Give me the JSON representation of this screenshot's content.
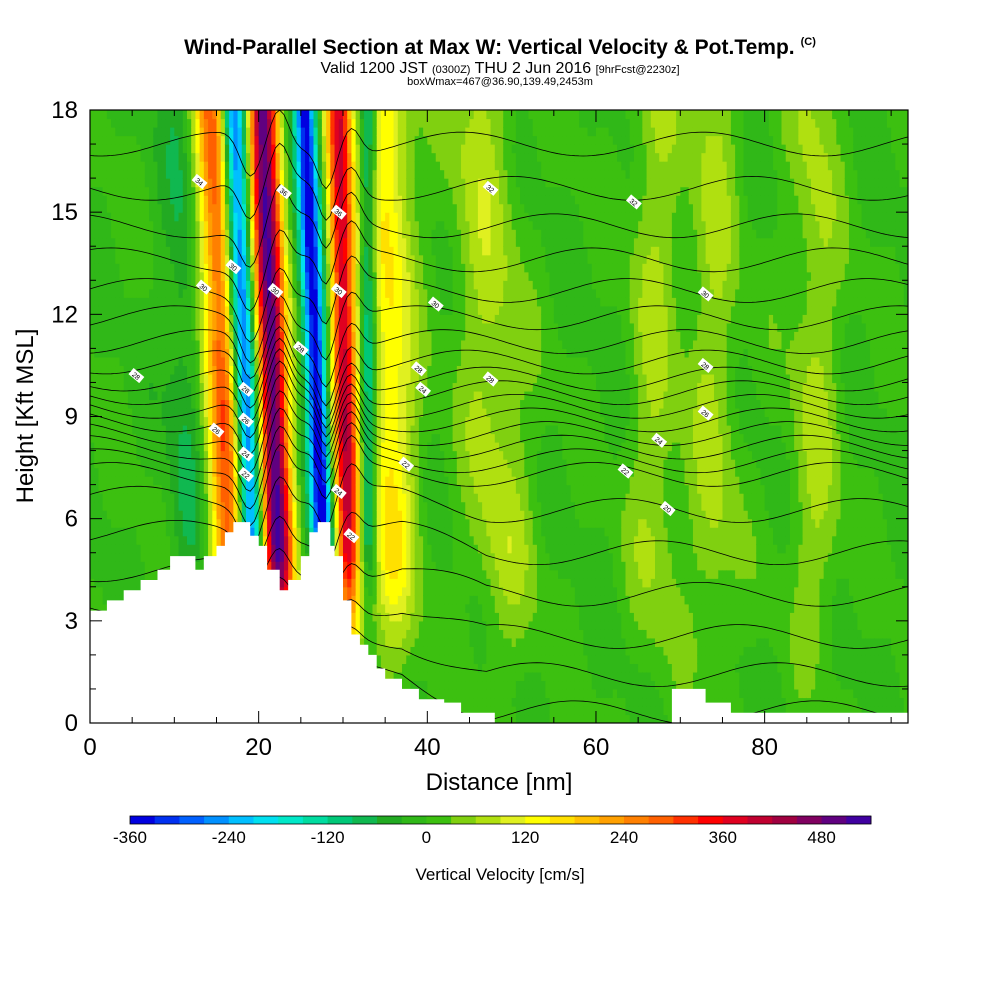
{
  "title": {
    "main": "Wind-Parallel Section at Max W: Vertical Velocity & Pot.Temp.",
    "copyright": "(C)",
    "valid_prefix": "Valid 1200 JST",
    "valid_utc": "(0300Z)",
    "valid_date": "THU 2 Jun 2016",
    "forecast": "[9hrFcst@2230z]",
    "box": "boxWmax=467@36.90,139.49,2453m"
  },
  "chart_data": {
    "type": "heatmap",
    "xlabel": "Distance [nm]",
    "ylabel": "Height [Kft MSL]",
    "xlim": [
      0,
      97
    ],
    "ylim": [
      0,
      18
    ],
    "x_ticks": [
      "0",
      "20",
      "40",
      "60",
      "80"
    ],
    "y_ticks": [
      "0",
      "3",
      "6",
      "9",
      "12",
      "15",
      "18"
    ],
    "colorbar": {
      "label": "Vertical Velocity [cm/s]",
      "tick_labels": [
        "-360",
        "-240",
        "-120",
        "0",
        "120",
        "240",
        "360",
        "480"
      ],
      "tick_values": [
        -360,
        -240,
        -120,
        0,
        120,
        240,
        360,
        480
      ],
      "bins": [
        -360,
        -330,
        -300,
        -270,
        -240,
        -210,
        -180,
        -150,
        -120,
        -90,
        -60,
        -30,
        0,
        30,
        60,
        90,
        120,
        150,
        180,
        210,
        240,
        270,
        300,
        330,
        360,
        390,
        420,
        450,
        480,
        510,
        540
      ],
      "colors": [
        "#0000e0",
        "#0030f0",
        "#0060ff",
        "#0090ff",
        "#00bfff",
        "#00e0f0",
        "#00e8c8",
        "#00dca0",
        "#00c878",
        "#10b850",
        "#22aa22",
        "#30b818",
        "#3cc010",
        "#80d010",
        "#b0e010",
        "#e0f020",
        "#ffff00",
        "#ffe000",
        "#ffc000",
        "#ffa000",
        "#ff8000",
        "#ff6000",
        "#ff3000",
        "#ff0000",
        "#e00020",
        "#c00030",
        "#a00040",
        "#800060",
        "#600080",
        "#4000a0"
      ]
    },
    "background_w": 0,
    "updrafts": [
      {
        "x_low": 17.5,
        "x_high": 14.5,
        "w": 300,
        "width": 2.3
      },
      {
        "x_low": 23.0,
        "x_high": 20.5,
        "w": 510,
        "width": 1.8
      },
      {
        "x_low": 31.0,
        "x_high": 29.5,
        "w": 390,
        "width": 1.5
      },
      {
        "x_low": 36.0,
        "x_high": 35.0,
        "w": 150,
        "width": 3.0
      },
      {
        "x_low": 50.0,
        "x_high": 46.0,
        "w": 70,
        "width": 4.0
      },
      {
        "x_low": 67.0,
        "x_high": 67.0,
        "w": 60,
        "width": 3.0
      },
      {
        "x_low": 74.0,
        "x_high": 74.0,
        "w": 60,
        "width": 3.0
      },
      {
        "x_low": 86.0,
        "x_high": 86.0,
        "w": 60,
        "width": 3.0
      }
    ],
    "downdrafts": [
      {
        "x_low": 20.0,
        "x_high": 17.0,
        "w": -360,
        "width": 1.5
      },
      {
        "x_low": 28.5,
        "x_high": 25.5,
        "w": -360,
        "width": 1.3
      },
      {
        "x_low": 33.0,
        "x_high": 33.0,
        "w": -180,
        "width": 1.0
      },
      {
        "x_low": 12.0,
        "x_high": 11.0,
        "w": -60,
        "width": 2.5
      }
    ],
    "terrain": [
      [
        0,
        3.3
      ],
      [
        2,
        3.3
      ],
      [
        2,
        3.6
      ],
      [
        4,
        3.6
      ],
      [
        4,
        3.9
      ],
      [
        6,
        3.9
      ],
      [
        6,
        4.2
      ],
      [
        8,
        4.2
      ],
      [
        8,
        4.5
      ],
      [
        9.5,
        4.5
      ],
      [
        9.5,
        4.9
      ],
      [
        12.5,
        4.9
      ],
      [
        12.5,
        4.5
      ],
      [
        13.5,
        4.5
      ],
      [
        13.5,
        4.9
      ],
      [
        15,
        4.9
      ],
      [
        15,
        5.2
      ],
      [
        16,
        5.2
      ],
      [
        16,
        5.6
      ],
      [
        17,
        5.6
      ],
      [
        17,
        5.9
      ],
      [
        19,
        5.9
      ],
      [
        19,
        5.5
      ],
      [
        20,
        5.5
      ],
      [
        20,
        5.2
      ],
      [
        21,
        5.2
      ],
      [
        21,
        4.5
      ],
      [
        22.5,
        4.5
      ],
      [
        22.5,
        3.9
      ],
      [
        23.5,
        3.9
      ],
      [
        23.5,
        4.2
      ],
      [
        25,
        4.2
      ],
      [
        25,
        4.9
      ],
      [
        26,
        4.9
      ],
      [
        26,
        5.6
      ],
      [
        27,
        5.6
      ],
      [
        27,
        5.9
      ],
      [
        28.5,
        5.9
      ],
      [
        28.5,
        5.2
      ],
      [
        29,
        5.2
      ],
      [
        29,
        4.9
      ],
      [
        30,
        4.9
      ],
      [
        30,
        3.6
      ],
      [
        31,
        3.6
      ],
      [
        31,
        2.6
      ],
      [
        32,
        2.6
      ],
      [
        32,
        2.3
      ],
      [
        33,
        2.3
      ],
      [
        33,
        2.0
      ],
      [
        34,
        2.0
      ],
      [
        34,
        1.6
      ],
      [
        35,
        1.6
      ],
      [
        35,
        1.3
      ],
      [
        37,
        1.3
      ],
      [
        37,
        1.0
      ],
      [
        39,
        1.0
      ],
      [
        39,
        0.7
      ],
      [
        42,
        0.7
      ],
      [
        42,
        0.6
      ],
      [
        44,
        0.6
      ],
      [
        44,
        0.3
      ],
      [
        48,
        0.3
      ],
      [
        48,
        0.0
      ],
      [
        69,
        0.0
      ],
      [
        69,
        1.0
      ],
      [
        73,
        1.0
      ],
      [
        73,
        0.6
      ],
      [
        76,
        0.6
      ],
      [
        76,
        0.3
      ],
      [
        97,
        0.3
      ],
      [
        97,
        0.0
      ],
      [
        0,
        0.0
      ]
    ],
    "theta_label_values": [
      "34",
      "36",
      "32",
      "30",
      "28",
      "26",
      "24",
      "22",
      "20"
    ],
    "theta_labels": [
      {
        "text": "34",
        "x": 13,
        "y": 15.9
      },
      {
        "text": "36",
        "x": 23,
        "y": 15.6
      },
      {
        "text": "36",
        "x": 29.5,
        "y": 15.0
      },
      {
        "text": "32",
        "x": 47.5,
        "y": 15.7
      },
      {
        "text": "32",
        "x": 64.5,
        "y": 15.3
      },
      {
        "text": "30",
        "x": 17,
        "y": 13.4
      },
      {
        "text": "30",
        "x": 13.5,
        "y": 12.8
      },
      {
        "text": "30",
        "x": 22,
        "y": 12.7
      },
      {
        "text": "30",
        "x": 29.5,
        "y": 12.7
      },
      {
        "text": "30",
        "x": 41,
        "y": 12.3
      },
      {
        "text": "30",
        "x": 73,
        "y": 12.6
      },
      {
        "text": "28",
        "x": 25,
        "y": 11.0
      },
      {
        "text": "28",
        "x": 5.5,
        "y": 10.2
      },
      {
        "text": "28",
        "x": 39,
        "y": 10.4
      },
      {
        "text": "28",
        "x": 47.5,
        "y": 10.1
      },
      {
        "text": "28",
        "x": 73,
        "y": 10.5
      },
      {
        "text": "28",
        "x": 18.5,
        "y": 9.8
      },
      {
        "text": "26",
        "x": 18.5,
        "y": 8.9
      },
      {
        "text": "26",
        "x": 73,
        "y": 9.1
      },
      {
        "text": "26",
        "x": 15,
        "y": 8.6
      },
      {
        "text": "24",
        "x": 39.5,
        "y": 9.8
      },
      {
        "text": "24",
        "x": 18.5,
        "y": 7.9
      },
      {
        "text": "24",
        "x": 67.5,
        "y": 8.3
      },
      {
        "text": "24",
        "x": 29.5,
        "y": 6.8
      },
      {
        "text": "22",
        "x": 18.5,
        "y": 7.3
      },
      {
        "text": "22",
        "x": 37.5,
        "y": 7.6
      },
      {
        "text": "22",
        "x": 63.5,
        "y": 7.4
      },
      {
        "text": "22",
        "x": 31,
        "y": 5.5
      },
      {
        "text": "20",
        "x": 68.5,
        "y": 6.3
      }
    ],
    "theta_levels": [
      {
        "base": 0.5,
        "flat": 1.0
      },
      {
        "base": 1.5,
        "flat": 1.0
      },
      {
        "base": 2.5,
        "flat": 0.9
      },
      {
        "base": 3.5,
        "flat": 0.8
      },
      {
        "base": 4.5,
        "flat": 0.6
      },
      {
        "base": 5.6,
        "flat": 0.5
      },
      {
        "base": 6.6,
        "flat": 0.3
      },
      {
        "base": 7.3,
        "flat": 0.15
      },
      {
        "base": 7.7,
        "flat": 0.1
      },
      {
        "base": 8.1,
        "flat": 0.1
      },
      {
        "base": 8.5,
        "flat": 0.1
      },
      {
        "base": 8.9,
        "flat": 0.1
      },
      {
        "base": 9.3,
        "flat": 0.1
      },
      {
        "base": 9.7,
        "flat": 0.1
      },
      {
        "base": 10.1,
        "flat": 0.1
      },
      {
        "base": 10.6,
        "flat": 0.1
      },
      {
        "base": 11.2,
        "flat": 0.1
      },
      {
        "base": 11.9,
        "flat": 0.1
      },
      {
        "base": 12.7,
        "flat": 0.1
      },
      {
        "base": 13.6,
        "flat": 0.1
      },
      {
        "base": 14.6,
        "flat": 0.1
      },
      {
        "base": 15.7,
        "flat": 0.1
      },
      {
        "base": 17.0,
        "flat": 0.1
      }
    ],
    "grid": false
  }
}
